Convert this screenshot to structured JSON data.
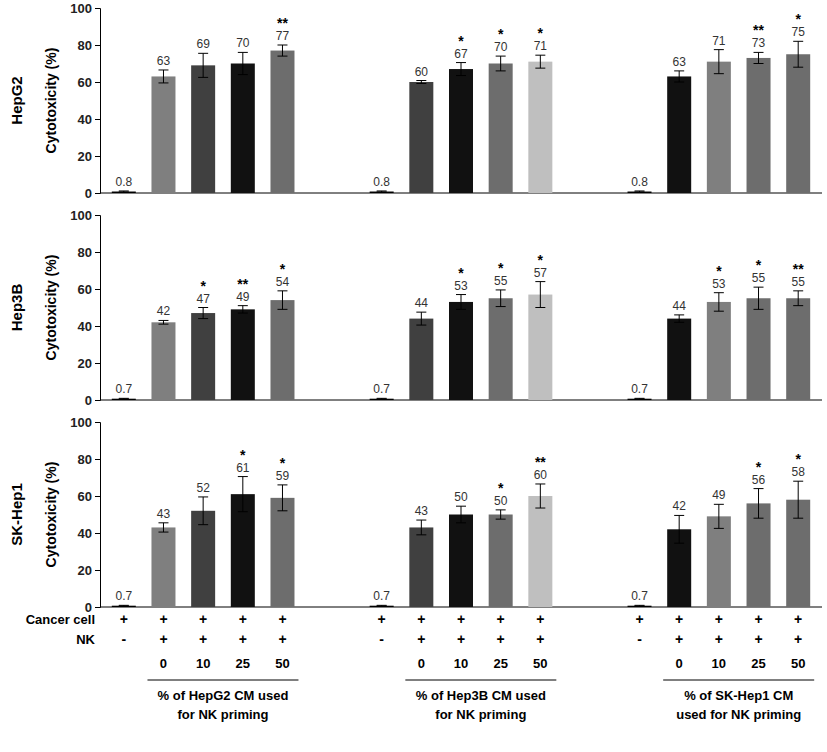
{
  "chart_data": [
    {
      "type": "bar",
      "title": "HepG2",
      "ylabel": "Cytotoxicity (%)",
      "ylim": [
        0,
        100
      ],
      "yticks": [
        0,
        20,
        40,
        60,
        80,
        100
      ],
      "data_labels": true,
      "values": [
        0.8,
        63,
        69,
        70,
        77,
        0.8,
        60,
        67,
        70,
        71,
        0.8,
        63,
        71,
        73,
        75
      ],
      "errors": [
        0.3,
        3.5,
        6.5,
        6,
        3,
        0.3,
        0.8,
        3.5,
        4,
        3.5,
        0.3,
        3,
        6.5,
        3,
        7
      ],
      "annotations": [
        null,
        null,
        null,
        null,
        "**",
        null,
        null,
        "*",
        "*",
        "*",
        null,
        null,
        null,
        "**",
        "*"
      ],
      "colors": [
        "#000000",
        "#7f7f7f",
        "#404040",
        "#111111",
        "#6d6d6d",
        "#000000",
        "#404040",
        "#111111",
        "#6d6d6d",
        "#bfbfbf",
        "#000000",
        "#111111",
        "#7f7f7f",
        "#6d6d6d",
        "#6d6d6d"
      ]
    },
    {
      "type": "bar",
      "title": "Hep3B",
      "ylabel": "Cytotoxicity (%)",
      "ylim": [
        0,
        100
      ],
      "yticks": [
        0,
        20,
        40,
        60,
        80,
        100
      ],
      "data_labels": true,
      "values": [
        0.7,
        42,
        47,
        49,
        54,
        0.7,
        44,
        53,
        55,
        57,
        0.7,
        44,
        53,
        55,
        55
      ],
      "errors": [
        0.2,
        1,
        3,
        2,
        5,
        0.2,
        3.5,
        4,
        4.5,
        7,
        0.2,
        2,
        5,
        6,
        4
      ],
      "annotations": [
        null,
        null,
        "*",
        "**",
        "*",
        null,
        null,
        "*",
        "*",
        "*",
        null,
        null,
        "*",
        "*",
        "**"
      ],
      "colors": [
        "#000000",
        "#7f7f7f",
        "#404040",
        "#111111",
        "#6d6d6d",
        "#000000",
        "#404040",
        "#111111",
        "#6d6d6d",
        "#bfbfbf",
        "#000000",
        "#111111",
        "#7f7f7f",
        "#6d6d6d",
        "#6d6d6d"
      ]
    },
    {
      "type": "bar",
      "title": "SK-Hep1",
      "ylabel": "Cytotoxicity (%)",
      "ylim": [
        0,
        100
      ],
      "yticks": [
        0,
        20,
        40,
        60,
        80,
        100
      ],
      "data_labels": true,
      "values": [
        0.7,
        43,
        52,
        61,
        59,
        0.7,
        43,
        50,
        50,
        60,
        0.7,
        42,
        49,
        56,
        58
      ],
      "errors": [
        0.2,
        2.5,
        7.5,
        9.5,
        7,
        0.2,
        4,
        4.5,
        2.5,
        6.5,
        0.2,
        7.5,
        6.5,
        8,
        10
      ],
      "annotations": [
        null,
        null,
        null,
        "*",
        "*",
        null,
        null,
        null,
        "*",
        "**",
        null,
        null,
        null,
        "*",
        "*"
      ],
      "colors": [
        "#000000",
        "#7f7f7f",
        "#404040",
        "#111111",
        "#6d6d6d",
        "#000000",
        "#404040",
        "#111111",
        "#6d6d6d",
        "#bfbfbf",
        "#000000",
        "#111111",
        "#7f7f7f",
        "#6d6d6d",
        "#6d6d6d"
      ]
    }
  ],
  "conditions": {
    "rows": [
      {
        "label": "Cancer cell",
        "cells": [
          "+",
          "+",
          "+",
          "+",
          "+",
          "+",
          "+",
          "+",
          "+",
          "+",
          "+",
          "+",
          "+",
          "+",
          "+"
        ]
      },
      {
        "label": "NK",
        "cells": [
          "-",
          "+",
          "+",
          "+",
          "+",
          "-",
          "+",
          "+",
          "+",
          "+",
          "-",
          "+",
          "+",
          "+",
          "+"
        ]
      }
    ],
    "concentrations": [
      null,
      0,
      10,
      25,
      50,
      null,
      0,
      10,
      25,
      50,
      null,
      0,
      10,
      25,
      50
    ],
    "groups": [
      [
        "% of HepG2 CM used",
        "for NK priming"
      ],
      [
        "% of Hep3B CM used",
        "for NK priming"
      ],
      [
        "% of SK-Hep1 CM",
        "used for NK priming"
      ]
    ]
  }
}
